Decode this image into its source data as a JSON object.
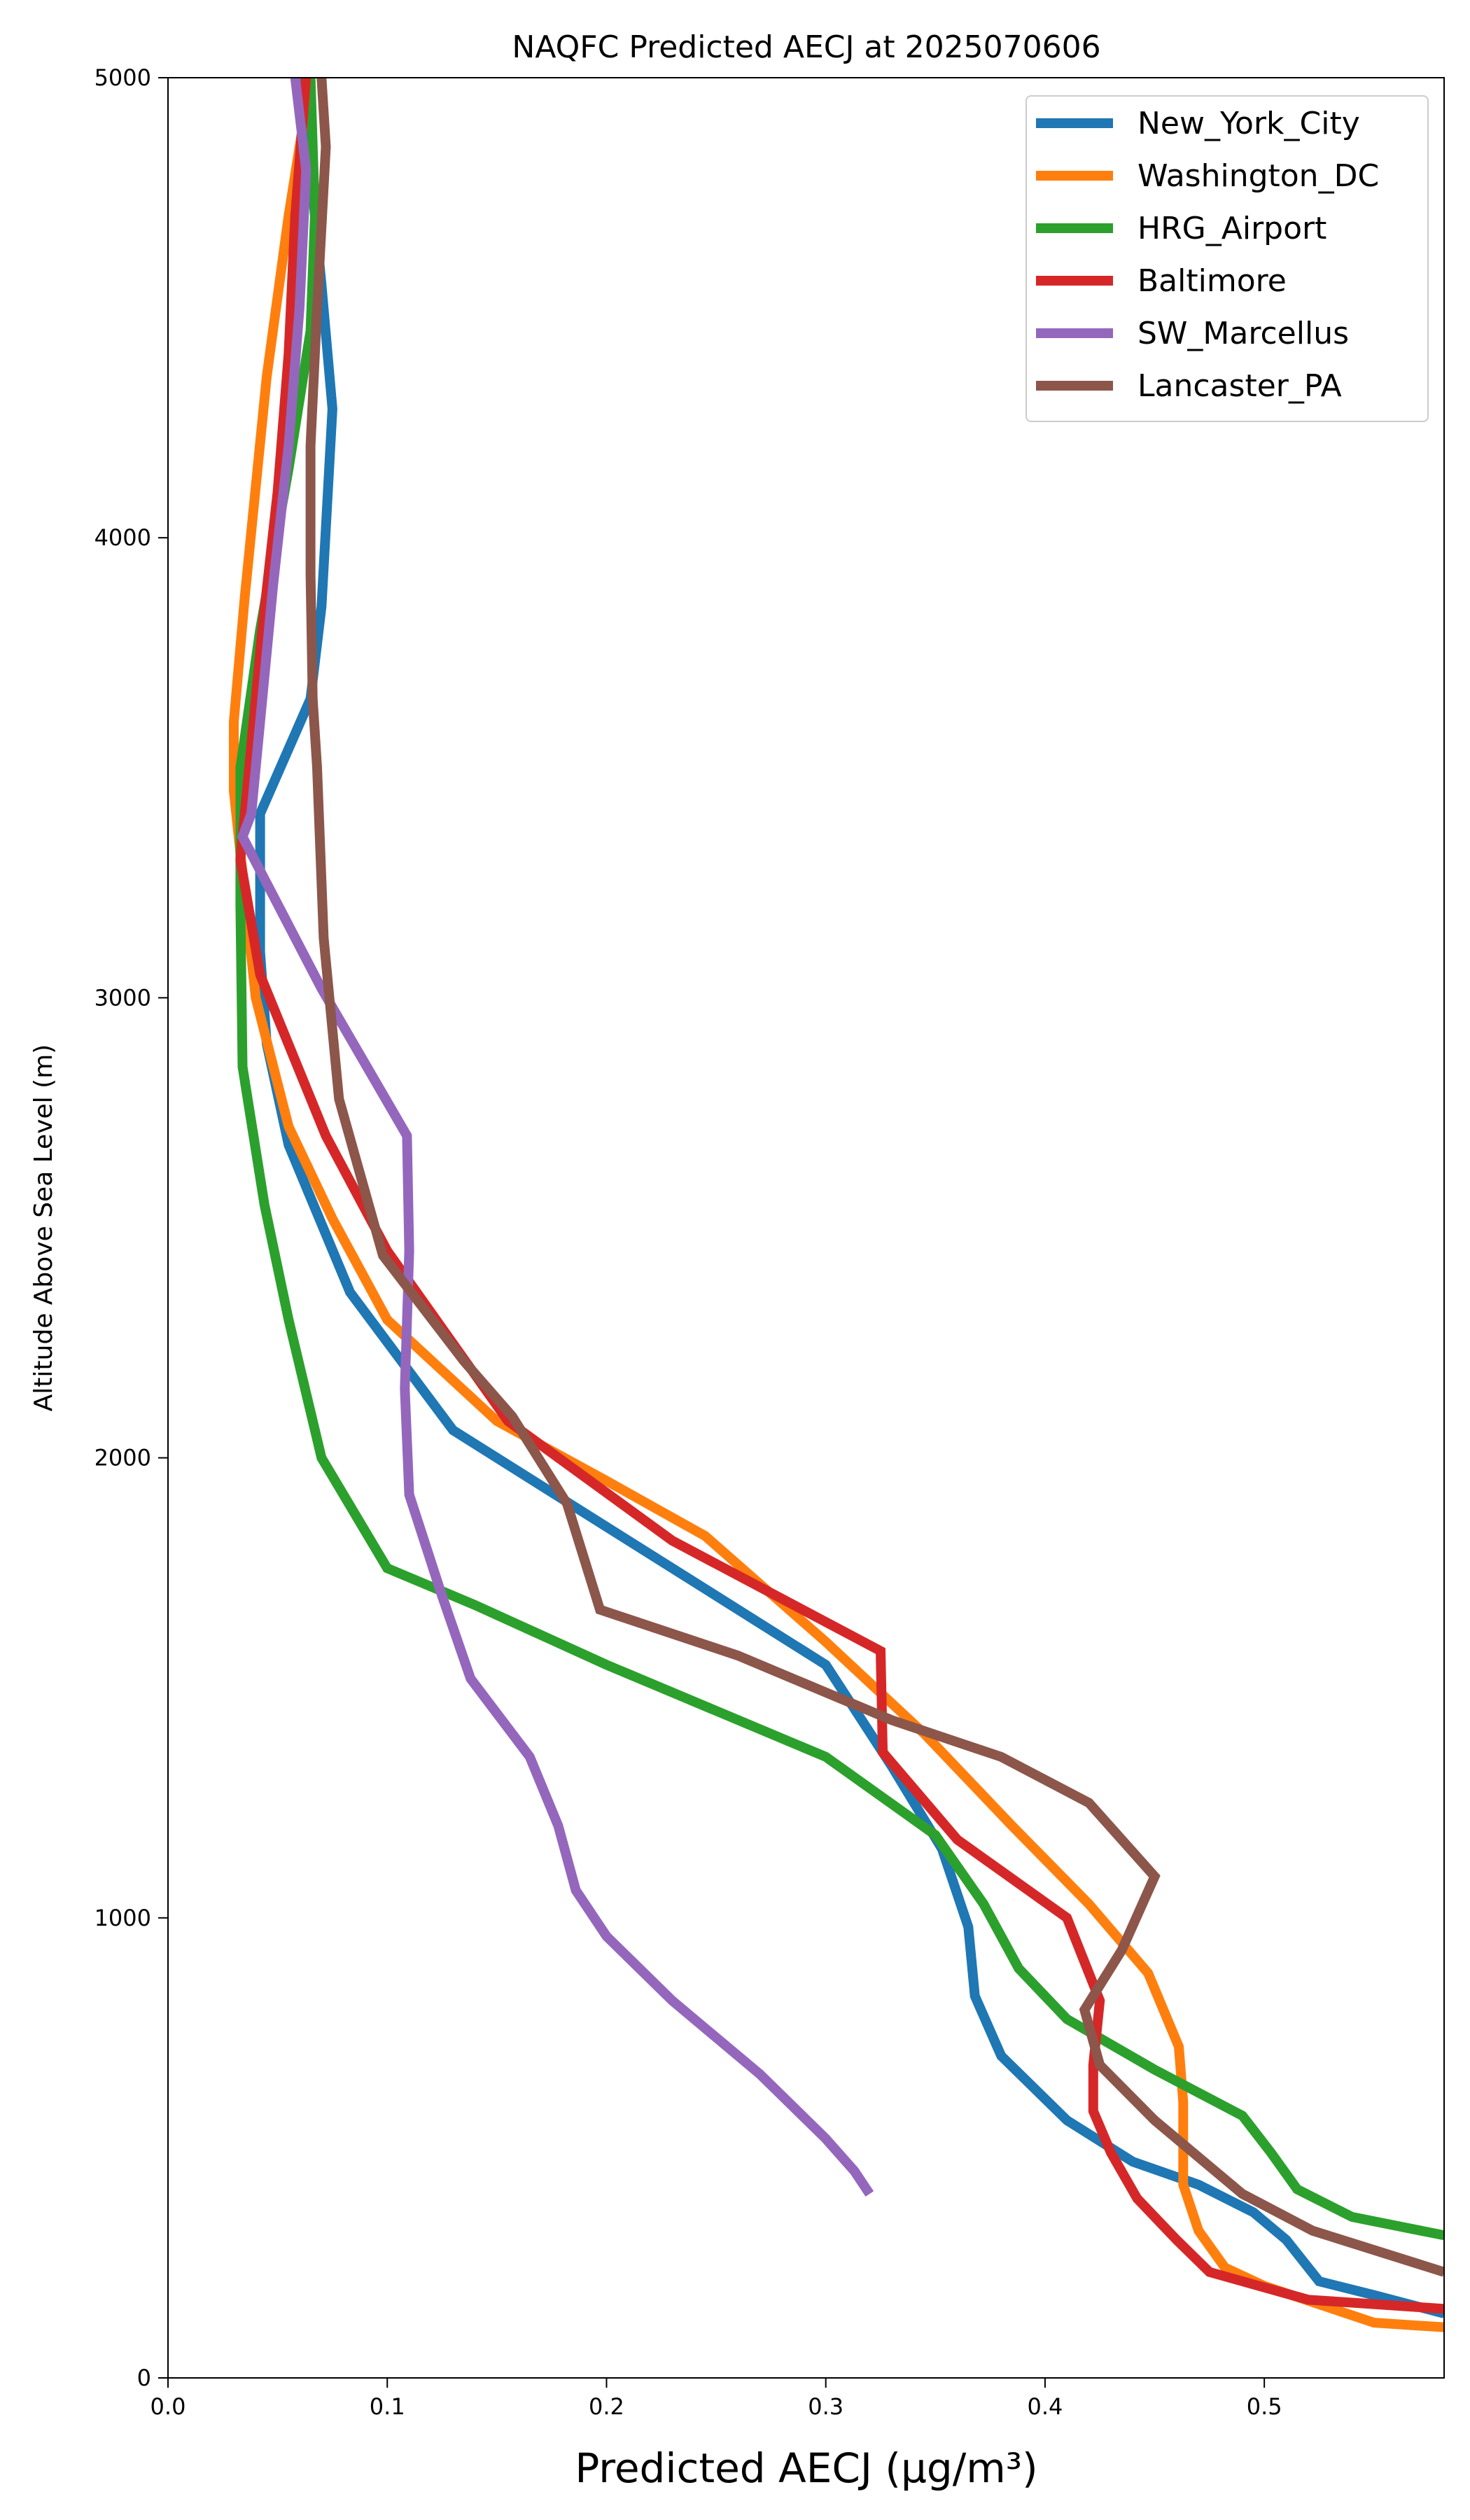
{
  "chart_data": {
    "type": "line",
    "title": "NAQFC Predicted AECJ at 2025070606",
    "xlabel": "Predicted AECJ (μg/m³)",
    "ylabel": "Altitude Above Sea Level (m)",
    "xlim": [
      0.0,
      0.582
    ],
    "ylim": [
      0,
      5000
    ],
    "xticks": [
      "0.0",
      "0.1",
      "0.2",
      "0.3",
      "0.4",
      "0.5"
    ],
    "xtick_values": [
      0.0,
      0.1,
      0.2,
      0.3,
      0.4,
      0.5
    ],
    "yticks": [
      "0",
      "1000",
      "2000",
      "3000",
      "4000",
      "5000"
    ],
    "ytick_values": [
      0,
      1000,
      2000,
      3000,
      4000,
      5000
    ],
    "grid": false,
    "legend_position": "top-right",
    "series": [
      {
        "name": "New_York_City",
        "color": "#1f77b4",
        "x": [
          0.06,
          0.065,
          0.07,
          0.075,
          0.07,
          0.065,
          0.042,
          0.042,
          0.045,
          0.055,
          0.083,
          0.13,
          0.3,
          0.33,
          0.353,
          0.365,
          0.368,
          0.38,
          0.41,
          0.44,
          0.47,
          0.495,
          0.51,
          0.525,
          0.55,
          0.582
        ],
        "y": [
          5000,
          4800,
          4550,
          4280,
          3850,
          3650,
          3400,
          3100,
          2900,
          2680,
          2360,
          2060,
          1550,
          1330,
          1150,
          980,
          830,
          700,
          560,
          470,
          420,
          360,
          300,
          210,
          180,
          140
        ]
      },
      {
        "name": "Washington_DC",
        "color": "#ff7f0e",
        "x": [
          0.065,
          0.055,
          0.045,
          0.035,
          0.03,
          0.03,
          0.04,
          0.055,
          0.075,
          0.1,
          0.15,
          0.2,
          0.245,
          0.3,
          0.345,
          0.385,
          0.42,
          0.447,
          0.461,
          0.463,
          0.463,
          0.47,
          0.482,
          0.5,
          0.55,
          0.582
        ],
        "y": [
          5000,
          4700,
          4350,
          3870,
          3600,
          3450,
          3000,
          2720,
          2520,
          2300,
          2080,
          1950,
          1830,
          1600,
          1400,
          1200,
          1030,
          880,
          720,
          600,
          420,
          320,
          240,
          200,
          120,
          110
        ]
      },
      {
        "name": "HRG_Airport",
        "color": "#2ca02c",
        "x": [
          0.065,
          0.067,
          0.065,
          0.055,
          0.042,
          0.033,
          0.033,
          0.034,
          0.044,
          0.055,
          0.07,
          0.1,
          0.14,
          0.2,
          0.3,
          0.35,
          0.372,
          0.388,
          0.41,
          0.45,
          0.49,
          0.503,
          0.515,
          0.54,
          0.582
        ],
        "y": [
          5000,
          4700,
          4450,
          4150,
          3800,
          3500,
          3200,
          2850,
          2550,
          2300,
          2000,
          1760,
          1680,
          1550,
          1350,
          1180,
          1030,
          890,
          780,
          670,
          570,
          490,
          410,
          350,
          310
        ]
      },
      {
        "name": "Baltimore",
        "color": "#d62728",
        "x": [
          0.063,
          0.058,
          0.055,
          0.05,
          0.043,
          0.037,
          0.033,
          0.042,
          0.072,
          0.1,
          0.155,
          0.23,
          0.325,
          0.326,
          0.36,
          0.41,
          0.425,
          0.422,
          0.422,
          0.43,
          0.442,
          0.46,
          0.475,
          0.52,
          0.582
        ],
        "y": [
          5000,
          4700,
          4400,
          4100,
          3800,
          3500,
          3300,
          3050,
          2700,
          2450,
          2080,
          1820,
          1580,
          1360,
          1170,
          1000,
          820,
          680,
          580,
          490,
          390,
          300,
          230,
          170,
          150
        ]
      },
      {
        "name": "SW_Marcellus",
        "color": "#9467bd",
        "x": [
          0.058,
          0.063,
          0.06,
          0.055,
          0.048,
          0.042,
          0.038,
          0.034,
          0.07,
          0.109,
          0.11,
          0.108,
          0.11,
          0.125,
          0.138,
          0.165,
          0.178,
          0.186,
          0.2,
          0.23,
          0.27,
          0.3,
          0.313,
          0.32
        ],
        "y": [
          5000,
          4800,
          4500,
          4200,
          3900,
          3600,
          3400,
          3350,
          3020,
          2700,
          2450,
          2150,
          1920,
          1700,
          1520,
          1350,
          1200,
          1060,
          960,
          820,
          660,
          520,
          450,
          400
        ]
      },
      {
        "name": "Lancaster_PA",
        "color": "#8c564b",
        "x": [
          0.07,
          0.072,
          0.068,
          0.065,
          0.065,
          0.066,
          0.068,
          0.071,
          0.078,
          0.098,
          0.135,
          0.157,
          0.182,
          0.197,
          0.26,
          0.33,
          0.38,
          0.42,
          0.45,
          0.435,
          0.418,
          0.425,
          0.45,
          0.49,
          0.522,
          0.582
        ],
        "y": [
          5000,
          4850,
          4500,
          4200,
          3920,
          3650,
          3500,
          3130,
          2780,
          2440,
          2210,
          2090,
          1900,
          1670,
          1570,
          1430,
          1350,
          1250,
          1090,
          930,
          800,
          680,
          560,
          400,
          320,
          230
        ]
      }
    ]
  }
}
